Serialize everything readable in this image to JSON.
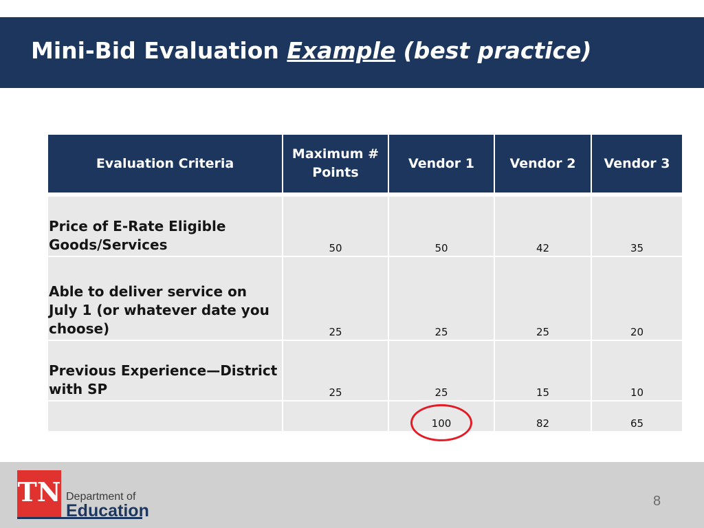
{
  "slide": {
    "title_main": "Mini-Bid Evaluation ",
    "title_underlined": "Example",
    "title_rest": " (best practice)",
    "page_number": "8"
  },
  "table": {
    "headers": [
      "Evaluation Criteria",
      "Maximum # Points",
      "Vendor 1",
      "Vendor 2",
      "Vendor 3"
    ],
    "rows": [
      {
        "criteria": "Price of E-Rate Eligible Goods/Services",
        "max": "50",
        "v1": "50",
        "v2": "42",
        "v3": "35"
      },
      {
        "criteria": "Able to deliver service on July 1 (or whatever date you choose)",
        "max": "25",
        "v1": "25",
        "v2": "25",
        "v3": "20"
      },
      {
        "criteria": "Previous Experience—District with SP",
        "max": "25",
        "v1": "25",
        "v2": "15",
        "v3": "10"
      }
    ],
    "totals": {
      "criteria": "",
      "max": "",
      "v1": "100",
      "v2": "82",
      "v3": "65"
    },
    "highlighted_cell": "totals.v1"
  },
  "logo": {
    "mark": "TN",
    "dept_line1": "Department of",
    "dept_line2": "Education"
  },
  "colors": {
    "banner": "#1d365d",
    "header_cell": "#1d365d",
    "body_cell": "#e8e8e8",
    "highlight_circle": "#e11c24",
    "logo_red": "#e0322e"
  }
}
